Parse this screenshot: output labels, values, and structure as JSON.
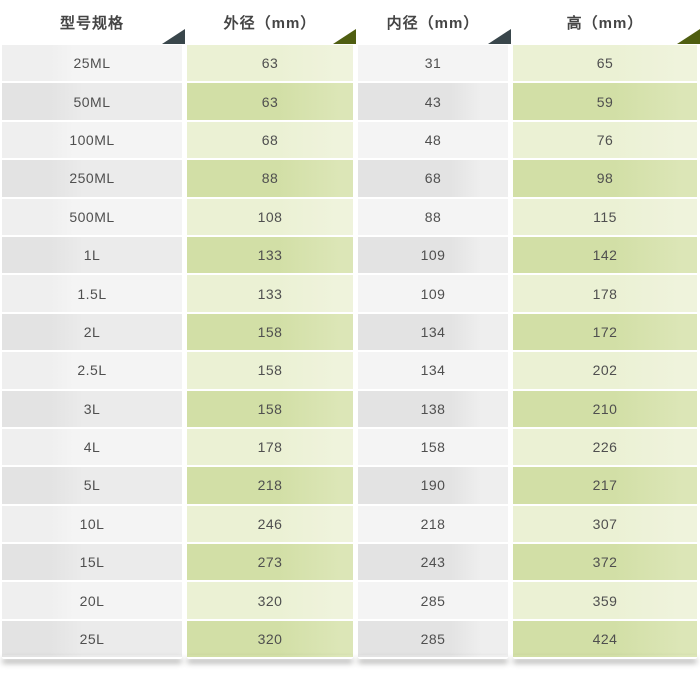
{
  "header": {
    "columns": [
      {
        "label": "型号规格",
        "sort_icon": "triangle-up-icon",
        "sort_icon_color": "#39464b"
      },
      {
        "label": "外径（mm）",
        "sort_icon": "triangle-up-icon",
        "sort_icon_color": "#4f5e11"
      },
      {
        "label": "内径（mm）",
        "sort_icon": "triangle-up-icon",
        "sort_icon_color": "#39464b"
      },
      {
        "label": "高（mm）",
        "sort_icon": "triangle-up-icon",
        "sort_icon_color": "#4f5e11"
      }
    ]
  },
  "rows": [
    {
      "model": "25ML",
      "outer_mm": "63",
      "inner_mm": "31",
      "height_mm": "65"
    },
    {
      "model": "50ML",
      "outer_mm": "63",
      "inner_mm": "43",
      "height_mm": "59"
    },
    {
      "model": "100ML",
      "outer_mm": "68",
      "inner_mm": "48",
      "height_mm": "76"
    },
    {
      "model": "250ML",
      "outer_mm": "88",
      "inner_mm": "68",
      "height_mm": "98"
    },
    {
      "model": "500ML",
      "outer_mm": "108",
      "inner_mm": "88",
      "height_mm": "115"
    },
    {
      "model": "1L",
      "outer_mm": "133",
      "inner_mm": "109",
      "height_mm": "142"
    },
    {
      "model": "1.5L",
      "outer_mm": "133",
      "inner_mm": "109",
      "height_mm": "178"
    },
    {
      "model": "2L",
      "outer_mm": "158",
      "inner_mm": "134",
      "height_mm": "172"
    },
    {
      "model": "2.5L",
      "outer_mm": "158",
      "inner_mm": "134",
      "height_mm": "202"
    },
    {
      "model": "3L",
      "outer_mm": "158",
      "inner_mm": "138",
      "height_mm": "210"
    },
    {
      "model": "4L",
      "outer_mm": "178",
      "inner_mm": "158",
      "height_mm": "226"
    },
    {
      "model": "5L",
      "outer_mm": "218",
      "inner_mm": "190",
      "height_mm": "217"
    },
    {
      "model": "10L",
      "outer_mm": "246",
      "inner_mm": "218",
      "height_mm": "307"
    },
    {
      "model": "15L",
      "outer_mm": "273",
      "inner_mm": "243",
      "height_mm": "372"
    },
    {
      "model": "20L",
      "outer_mm": "320",
      "inner_mm": "285",
      "height_mm": "359"
    },
    {
      "model": "25L",
      "outer_mm": "320",
      "inner_mm": "285",
      "height_mm": "424"
    }
  ],
  "colors": {
    "green_row_light": "#ecf1d6",
    "green_row_dark": "#d4e0ab",
    "gray_row_light": "#f4f4f4",
    "gray_row_dark": "#e4e4e4",
    "header_text": "#454545",
    "body_text": "#4f4f4f",
    "sort_triangle_dark": "#39464b",
    "sort_triangle_olive": "#4f5e11"
  },
  "chart_data": {
    "type": "table",
    "title": "",
    "columns": [
      "型号规格",
      "外径（mm）",
      "内径（mm）",
      "高（mm）"
    ],
    "rows": [
      [
        "25ML",
        63,
        31,
        65
      ],
      [
        "50ML",
        63,
        43,
        59
      ],
      [
        "100ML",
        68,
        48,
        76
      ],
      [
        "250ML",
        88,
        68,
        98
      ],
      [
        "500ML",
        108,
        88,
        115
      ],
      [
        "1L",
        133,
        109,
        142
      ],
      [
        "1.5L",
        133,
        109,
        178
      ],
      [
        "2L",
        158,
        134,
        172
      ],
      [
        "2.5L",
        158,
        134,
        202
      ],
      [
        "3L",
        158,
        138,
        210
      ],
      [
        "4L",
        178,
        158,
        226
      ],
      [
        "5L",
        218,
        190,
        217
      ],
      [
        "10L",
        246,
        218,
        307
      ],
      [
        "15L",
        273,
        243,
        372
      ],
      [
        "20L",
        320,
        285,
        359
      ],
      [
        "25L",
        320,
        285,
        424
      ]
    ]
  }
}
